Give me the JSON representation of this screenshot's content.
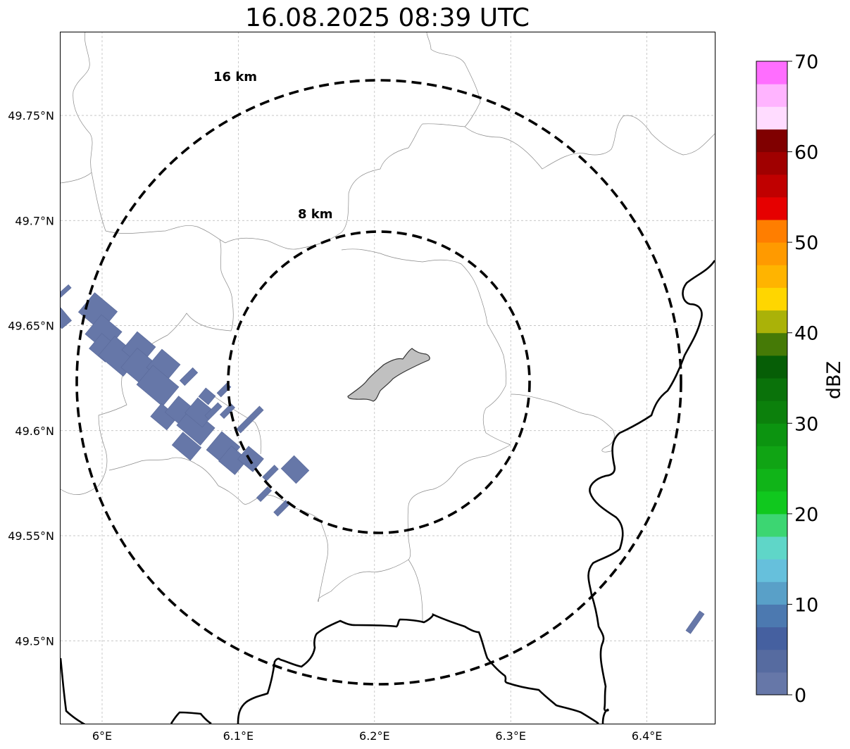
{
  "title": "16.08.2025 08:39 UTC",
  "map": {
    "lat_ticks": [
      {
        "value": 49.75,
        "label": "49.75°N"
      },
      {
        "value": 49.7,
        "label": "49.7°N"
      },
      {
        "value": 49.65,
        "label": "49.65°N"
      },
      {
        "value": 49.6,
        "label": "49.6°N"
      },
      {
        "value": 49.55,
        "label": "49.55°N"
      },
      {
        "value": 49.5,
        "label": "49.5°N"
      }
    ],
    "lon_ticks": [
      {
        "value": 6.0,
        "label": "6°E"
      },
      {
        "value": 6.1,
        "label": "6.1°E"
      },
      {
        "value": 6.2,
        "label": "6.2°E"
      },
      {
        "value": 6.3,
        "label": "6.3°E"
      },
      {
        "value": 6.4,
        "label": "6.4°E"
      }
    ],
    "lon_range": [
      5.97,
      6.45
    ],
    "lat_range": [
      49.46,
      49.79
    ],
    "grid": true,
    "rings": [
      {
        "label": "16 km",
        "center_lon": 6.203,
        "center_lat": 49.623
      },
      {
        "label": "8 km",
        "center_lon": 6.203,
        "center_lat": 49.623
      }
    ],
    "city_fill_color": "#c0c0c0",
    "echo_color": "#6677a8"
  },
  "colorbar": {
    "label": "dBZ",
    "min": 0,
    "max": 70,
    "step": 2.5,
    "ticks": [
      {
        "value": 0,
        "label": "0"
      },
      {
        "value": 10,
        "label": "10"
      },
      {
        "value": 20,
        "label": "20"
      },
      {
        "value": 30,
        "label": "30"
      },
      {
        "value": 40,
        "label": "40"
      },
      {
        "value": 50,
        "label": "50"
      },
      {
        "value": 60,
        "label": "60"
      },
      {
        "value": 70,
        "label": "70"
      }
    ],
    "colors": [
      "#6677a8",
      "#566ba0",
      "#4560a0",
      "#4c79b0",
      "#59a0c8",
      "#66c0dc",
      "#5fd6c8",
      "#3cd672",
      "#10c81e",
      "#10b418",
      "#10a414",
      "#0c9410",
      "#0c800c",
      "#0a720a",
      "#065e06",
      "#457a06",
      "#aab208",
      "#ffd600",
      "#ffb400",
      "#ff9a00",
      "#ff7e00",
      "#e60000",
      "#c00000",
      "#a00000",
      "#800000",
      "#ffdcff",
      "#ffb4ff",
      "#ff6eff",
      "#f032f0"
    ]
  }
}
